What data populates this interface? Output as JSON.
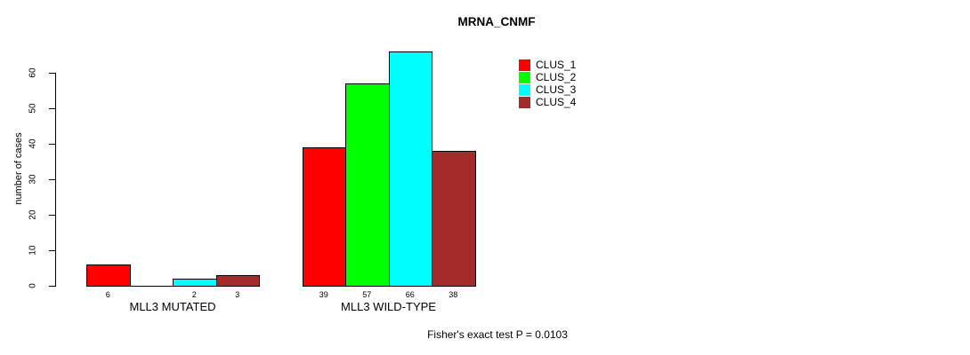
{
  "figure": {
    "title": "MRNA_CNMF",
    "footnote": "Fisher's exact test P = 0.0103"
  },
  "chart_data": {
    "type": "bar",
    "title": "MRNA_CNMF",
    "xlabel": "",
    "ylabel": "number of cases",
    "ylim": [
      0,
      66
    ],
    "yticks": [
      0,
      10,
      20,
      30,
      40,
      50,
      60
    ],
    "grid": false,
    "legend_position": "right",
    "categories": [
      "MLL3 MUTATED",
      "MLL3 WILD-TYPE"
    ],
    "series": [
      {
        "name": "CLUS_1",
        "color": "#ff0000",
        "values": [
          6,
          39
        ]
      },
      {
        "name": "CLUS_2",
        "color": "#00ff00",
        "values": [
          0,
          57
        ]
      },
      {
        "name": "CLUS_3",
        "color": "#00ffff",
        "values": [
          2,
          66
        ]
      },
      {
        "name": "CLUS_4",
        "color": "#a52a2a",
        "values": [
          3,
          38
        ]
      }
    ],
    "bar_value_labels": [
      [
        "6",
        "",
        "2",
        "3"
      ],
      [
        "39",
        "57",
        "66",
        "38"
      ]
    ],
    "footnote": "Fisher's exact test P = 0.0103",
    "axis_color": "#000000",
    "bar_border_color": "#000000"
  }
}
